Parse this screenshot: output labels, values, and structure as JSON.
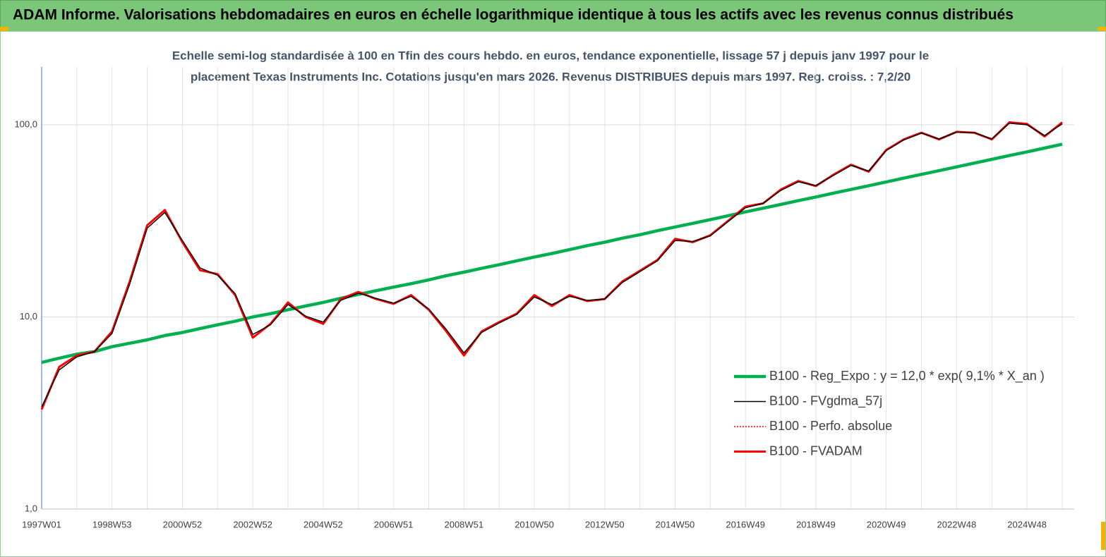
{
  "chart_data": {
    "type": "line",
    "title": "ADAM Informe. Valorisations hebdomadaires en euros en échelle logarithmique identique à tous les actifs avec les revenus connus distribués",
    "subtitle": [
      "Echelle semi-log standardisée à 100 en Tfin des cours hebdo. en euros, tendance exponentielle, lissage 57 j depuis janv 1997 pour le",
      "placement Texas Instruments Inc. Cotations jusqu'en mars 2026. Revenus DISTRIBUES depuis mars 1997. Reg. croiss. : 7,2/20"
    ],
    "categories": [
      "1997W01",
      null,
      null,
      null,
      "1998W53",
      null,
      null,
      null,
      "2000W52",
      null,
      null,
      null,
      "2002W52",
      null,
      null,
      null,
      "2004W52",
      null,
      null,
      null,
      "2006W51",
      null,
      null,
      null,
      "2008W51",
      null,
      null,
      null,
      "2010W50",
      null,
      null,
      null,
      "2012W50",
      null,
      null,
      null,
      "2014W50",
      null,
      null,
      null,
      "2016W49",
      null,
      null,
      null,
      "2018W49",
      null,
      null,
      null,
      "2020W49",
      null,
      null,
      null,
      "2022W48",
      null,
      null,
      null,
      "2024W48",
      null,
      null
    ],
    "log_scale": true,
    "ylim": [
      1,
      200
    ],
    "yticks": [
      {
        "value": 1,
        "label": "1,0"
      },
      {
        "value": 10,
        "label": "10,0"
      },
      {
        "value": 100,
        "label": "100,0"
      }
    ],
    "grid": true,
    "legend": "right",
    "series": [
      {
        "name": "B100 - Reg_Expo : y = 12,0 * exp( 9,1% *  X_an )",
        "color": "#00b050",
        "values": [
          5.8,
          6.1,
          6.4,
          6.6,
          7.0,
          7.3,
          7.6,
          8.0,
          8.3,
          8.7,
          9.1,
          9.5,
          10.0,
          10.4,
          10.9,
          11.4,
          11.9,
          12.5,
          13.1,
          13.7,
          14.3,
          14.9,
          15.6,
          16.4,
          17.1,
          17.9,
          18.7,
          19.6,
          20.5,
          21.4,
          22.4,
          23.5,
          24.5,
          25.7,
          26.8,
          28.1,
          29.4,
          30.7,
          32.1,
          33.6,
          35.2,
          36.8,
          38.5,
          40.3,
          42.1,
          44.1,
          46.1,
          48.2,
          50.4,
          52.8,
          55.2,
          57.7,
          60.4,
          63.2,
          66.1,
          69.2,
          72.3,
          75.7,
          79.2
        ]
      },
      {
        "name": "B100 - FVgdma_57j",
        "color": "#000000",
        "values": [
          3.4,
          5.3,
          6.2,
          6.6,
          8.2,
          14.8,
          29,
          35,
          25,
          18,
          16.5,
          13.2,
          8.1,
          9.1,
          11.6,
          10.1,
          9.4,
          12.2,
          13.3,
          12.5,
          11.8,
          12.8,
          11.0,
          8.6,
          6.5,
          8.3,
          9.3,
          10.3,
          12.7,
          11.6,
          12.8,
          12.2,
          12.4,
          15.1,
          17.2,
          19.6,
          25.0,
          24.7,
          26.4,
          31.3,
          37.0,
          39.0,
          45.5,
          50.5,
          48.3,
          54.5,
          61.5,
          57.5,
          73.5,
          83.5,
          90.5,
          84.5,
          91.5,
          91.0,
          84.5,
          102,
          100,
          88,
          101
        ]
      },
      {
        "name": "B100 - Perfo. absolue",
        "color": "#ff0000",
        "dash": "dotted",
        "values": [
          3.3,
          5.5,
          6.3,
          6.6,
          8.4,
          15.3,
          30,
          36,
          24.5,
          17.5,
          16.7,
          13,
          7.8,
          9.2,
          11.9,
          10,
          9.2,
          12.4,
          13.5,
          12.4,
          11.7,
          13,
          10.9,
          8.4,
          6.3,
          8.4,
          9.4,
          10.4,
          13,
          11.4,
          13,
          12.1,
          12.4,
          15.3,
          17.4,
          19.8,
          25.5,
          24.5,
          26.6,
          31.6,
          37.5,
          39,
          46,
          51,
          48,
          55,
          62,
          57,
          74,
          84,
          91,
          84,
          92,
          91,
          84,
          103,
          101,
          87,
          103
        ]
      },
      {
        "name": "B100 - FVADAM",
        "color": "#ff0000",
        "values": [
          3.3,
          5.5,
          6.3,
          6.6,
          8.4,
          15.3,
          30,
          36,
          24.5,
          17.5,
          16.7,
          13,
          7.8,
          9.2,
          11.9,
          10,
          9.2,
          12.4,
          13.5,
          12.4,
          11.7,
          13,
          10.9,
          8.4,
          6.3,
          8.4,
          9.4,
          10.4,
          13,
          11.4,
          13,
          12.1,
          12.4,
          15.3,
          17.4,
          19.8,
          25.5,
          24.5,
          26.6,
          31.6,
          37.5,
          39,
          46,
          51,
          48,
          55,
          62,
          57,
          74,
          84,
          91,
          84,
          92,
          91,
          84,
          103,
          101,
          87,
          103
        ]
      }
    ]
  }
}
